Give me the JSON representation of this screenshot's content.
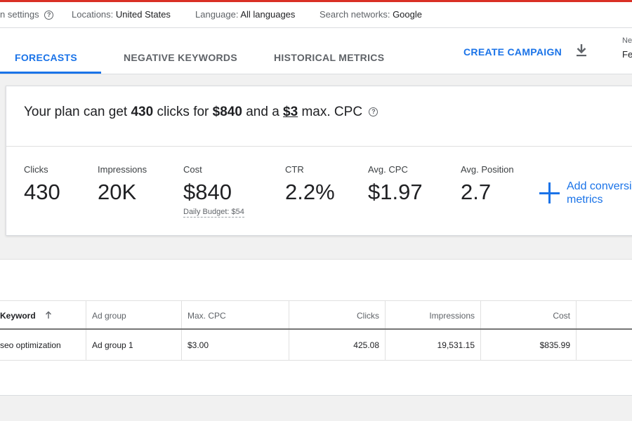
{
  "settings_bar": {
    "plan_settings": "n settings",
    "locations_label": "Locations:",
    "locations_value": "United States",
    "language_label": "Language:",
    "language_value": "All languages",
    "networks_label": "Search networks:",
    "networks_value": "Google"
  },
  "tabs": {
    "forecasts": "FORECASTS",
    "negative_keywords": "NEGATIVE KEYWORDS",
    "historical_metrics": "HISTORICAL METRICS",
    "create_campaign": "CREATE CAMPAIGN",
    "ne_label": "Ne",
    "fe_value": "Fe"
  },
  "summary": {
    "prefix": "Your plan can get",
    "clicks": "430",
    "clicks_for": "clicks for",
    "cost": "$840",
    "and_a": "and a",
    "max_cpc": "$3",
    "suffix": "max. CPC"
  },
  "metrics": {
    "clicks_label": "Clicks",
    "clicks_value": "430",
    "impressions_label": "Impressions",
    "impressions_value": "20K",
    "cost_label": "Cost",
    "cost_value": "$840",
    "daily_budget": "Daily Budget: $54",
    "ctr_label": "CTR",
    "ctr_value": "2.2%",
    "avg_cpc_label": "Avg. CPC",
    "avg_cpc_value": "$1.97",
    "avg_position_label": "Avg. Position",
    "avg_position_value": "2.7",
    "add_conversion": "Add conversi",
    "add_conversion_line2": "metrics"
  },
  "table": {
    "headers": {
      "keyword": "Keyword",
      "ad_group": "Ad group",
      "max_cpc": "Max. CPC",
      "clicks": "Clicks",
      "impressions": "Impressions",
      "cost": "Cost"
    },
    "rows": [
      {
        "keyword": "seo optimization",
        "ad_group": "Ad group 1",
        "max_cpc": "$3.00",
        "clicks": "425.08",
        "impressions": "19,531.15",
        "cost": "$835.99"
      }
    ]
  },
  "colors": {
    "accent": "#1a73e8",
    "top_line": "#d93025"
  },
  "icons": [
    "help-icon",
    "download-icon",
    "plus-icon",
    "sort-arrow-up-icon"
  ]
}
